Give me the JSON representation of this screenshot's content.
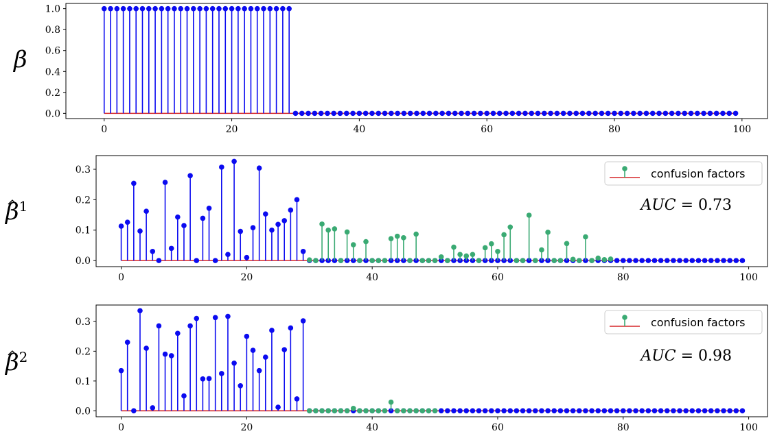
{
  "colors": {
    "signal": "#0b0bf0",
    "confusion": "#3aaa73",
    "baseline": "#d62728",
    "axis": "#000000"
  },
  "chart_data": [
    {
      "type": "stem",
      "ylabel": "β",
      "ylabel_sup": "",
      "ylabel_hat": false,
      "xlim": [
        -6,
        104
      ],
      "ylim": [
        -0.05,
        1.05
      ],
      "xticks": [
        0,
        20,
        40,
        60,
        80,
        100
      ],
      "xtick_labels": [
        "0",
        "20",
        "40",
        "60",
        "80",
        "100"
      ],
      "yticks": [
        0.0,
        0.2,
        0.4,
        0.6,
        0.8,
        1.0
      ],
      "ytick_labels": [
        "0.0",
        "0.2",
        "0.4",
        "0.6",
        "0.8",
        "1.0"
      ],
      "x_start": 0,
      "signal_values": [
        1,
        1,
        1,
        1,
        1,
        1,
        1,
        1,
        1,
        1,
        1,
        1,
        1,
        1,
        1,
        1,
        1,
        1,
        1,
        1,
        1,
        1,
        1,
        1,
        1,
        1,
        1,
        1,
        1,
        1,
        0,
        0,
        0,
        0,
        0,
        0,
        0,
        0,
        0,
        0,
        0,
        0,
        0,
        0,
        0,
        0,
        0,
        0,
        0,
        0,
        0,
        0,
        0,
        0,
        0,
        0,
        0,
        0,
        0,
        0,
        0,
        0,
        0,
        0,
        0,
        0,
        0,
        0,
        0,
        0,
        0,
        0,
        0,
        0,
        0,
        0,
        0,
        0,
        0,
        0,
        0,
        0,
        0,
        0,
        0,
        0,
        0,
        0,
        0,
        0,
        0,
        0,
        0,
        0,
        0,
        0,
        0,
        0,
        0,
        0
      ],
      "confusion_x_start": 30,
      "confusion_values": [],
      "legend": null,
      "annotation": null
    },
    {
      "type": "stem",
      "ylabel": "β",
      "ylabel_sup": "1",
      "ylabel_hat": true,
      "xlim": [
        -4,
        103
      ],
      "ylim": [
        -0.02,
        0.345
      ],
      "xticks": [
        0,
        20,
        40,
        60,
        80,
        100
      ],
      "xtick_labels": [
        "0",
        "20",
        "40",
        "60",
        "80",
        "100"
      ],
      "yticks": [
        0.0,
        0.1,
        0.2,
        0.3
      ],
      "ytick_labels": [
        "0.0",
        "0.1",
        "0.2",
        "0.3"
      ],
      "x_start": 0,
      "signal_values": [
        0.113,
        0.126,
        0.254,
        0.097,
        0.162,
        0.03,
        0.0,
        0.257,
        0.04,
        0.143,
        0.115,
        0.279,
        0.0,
        0.139,
        0.172,
        0.0,
        0.307,
        0.02,
        0.326,
        0.096,
        0.01,
        0.108,
        0.304,
        0.153,
        0.1,
        0.119,
        0.131,
        0.166,
        0.2,
        0.03,
        0,
        0,
        0,
        0,
        0,
        0,
        0,
        0,
        0,
        0,
        0,
        0,
        0,
        0,
        0,
        0,
        0,
        0,
        0,
        0,
        0,
        0,
        0,
        0,
        0,
        0,
        0,
        0,
        0,
        0,
        0,
        0,
        0,
        0,
        0,
        0,
        0,
        0,
        0,
        0,
        0,
        0,
        0,
        0,
        0,
        0,
        0,
        0,
        0,
        0,
        0,
        0,
        0,
        0,
        0,
        0,
        0,
        0,
        0,
        0,
        0,
        0,
        0,
        0,
        0,
        0,
        0,
        0,
        0,
        0
      ],
      "confusion_x_start": 30,
      "confusion_values": [
        0.002,
        0.0,
        0.12,
        0.1,
        0.104,
        0.0,
        0.094,
        0.052,
        0.0,
        0.062,
        0.0,
        0.0,
        0.0,
        0.072,
        0.08,
        0.075,
        0.0,
        0.087,
        0.0,
        0.0,
        0.0,
        0.012,
        0.0,
        0.044,
        0.02,
        0.015,
        0.02,
        0.0,
        0.042,
        0.055,
        0.03,
        0.085,
        0.11,
        0.0,
        0.0,
        0.149,
        0.0,
        0.035,
        0.093,
        0.0,
        0.0,
        0.056,
        0.004,
        0.0,
        0.078,
        0.0,
        0.008,
        0.003,
        0.005
      ],
      "legend": {
        "label": "confusion factors",
        "position": "top-right"
      },
      "annotation": {
        "var": "AUC",
        "eq": " = ",
        "num": "0.73"
      }
    },
    {
      "type": "stem",
      "ylabel": "β",
      "ylabel_sup": "2",
      "ylabel_hat": true,
      "xlim": [
        -4,
        103
      ],
      "ylim": [
        -0.02,
        0.355
      ],
      "xticks": [
        0,
        20,
        40,
        60,
        80,
        100
      ],
      "xtick_labels": [
        "0",
        "20",
        "40",
        "60",
        "80",
        "100"
      ],
      "yticks": [
        0.0,
        0.1,
        0.2,
        0.3
      ],
      "ytick_labels": [
        "0.0",
        "0.1",
        "0.2",
        "0.3"
      ],
      "x_start": 0,
      "signal_values": [
        0.135,
        0.23,
        0.0,
        0.336,
        0.21,
        0.01,
        0.285,
        0.19,
        0.185,
        0.26,
        0.05,
        0.285,
        0.31,
        0.107,
        0.108,
        0.313,
        0.125,
        0.317,
        0.16,
        0.084,
        0.25,
        0.203,
        0.135,
        0.18,
        0.27,
        0.012,
        0.205,
        0.278,
        0.04,
        0.302,
        0,
        0,
        0,
        0,
        0,
        0,
        0,
        0,
        0,
        0,
        0,
        0,
        0,
        0,
        0,
        0,
        0,
        0,
        0,
        0,
        0,
        0,
        0,
        0,
        0,
        0,
        0,
        0,
        0,
        0,
        0,
        0,
        0,
        0,
        0,
        0,
        0,
        0,
        0,
        0,
        0,
        0,
        0,
        0,
        0,
        0,
        0,
        0,
        0,
        0,
        0,
        0,
        0,
        0,
        0,
        0,
        0,
        0,
        0,
        0,
        0,
        0,
        0,
        0,
        0,
        0,
        0,
        0,
        0,
        0
      ],
      "confusion_x_start": 30,
      "confusion_values": [
        0.0,
        0.0,
        0.0,
        0.0,
        0.0,
        0.0,
        0.0,
        0.008,
        0.0,
        0.0,
        0.0,
        0.0,
        0.0,
        0.029,
        0.0,
        0.0,
        0.0,
        0.0,
        0.0,
        0.0,
        0.0
      ],
      "legend": {
        "label": "confusion factors",
        "position": "top-right"
      },
      "annotation": {
        "var": "AUC",
        "eq": " = ",
        "num": "0.98"
      }
    }
  ]
}
